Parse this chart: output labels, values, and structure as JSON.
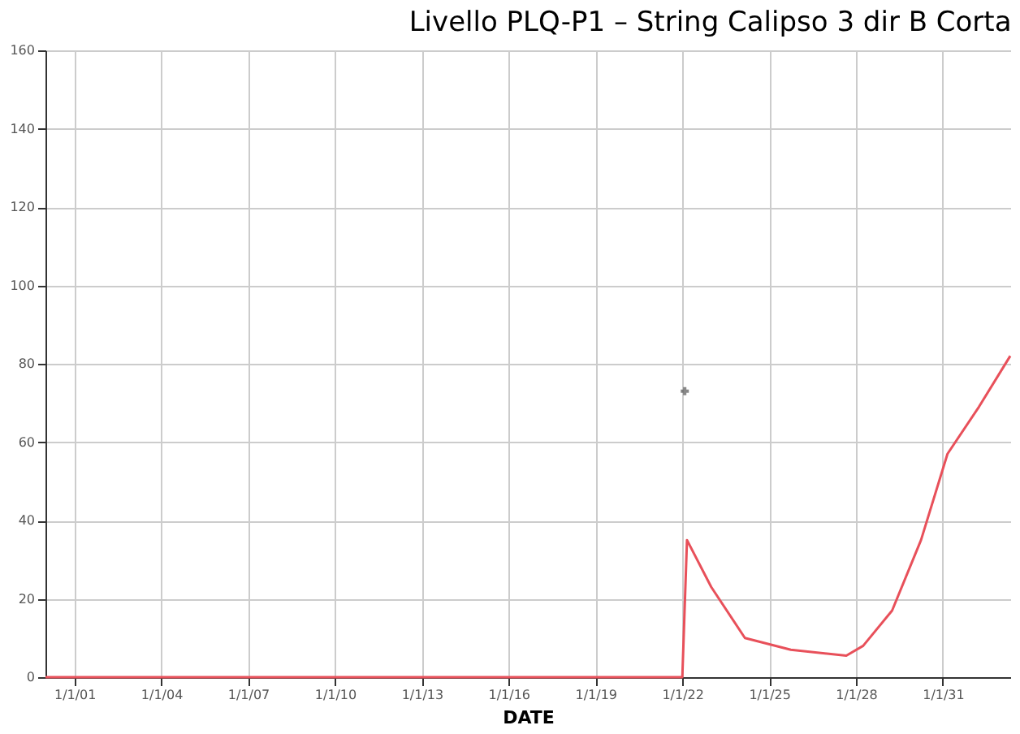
{
  "chart_data": {
    "type": "line",
    "title": "Livello PLQ-P1 – String Calipso 3 dir B Corta",
    "xlabel": "DATE",
    "series": [
      {
        "color": "#e8505a",
        "x": [
          "2000-01",
          "2021-12",
          "2022-01",
          "2022-03",
          "2023-01",
          "2024-03",
          "2025-10",
          "2027-09",
          "2028-04",
          "2029-04",
          "2030-04",
          "2031-03",
          "2032-04",
          "2033-05"
        ],
        "values": [
          0,
          0,
          0,
          35,
          23,
          10,
          7,
          5.5,
          8,
          17,
          35,
          57,
          69,
          82
        ]
      },
      {
        "type": "scatter",
        "color": "#555555",
        "marker": "cross",
        "x": [
          "2022-02"
        ],
        "values": [
          73
        ]
      }
    ],
    "xlim": [
      "2000-01",
      "2033-05"
    ],
    "ylim": [
      0,
      160
    ],
    "xticks": [
      {
        "value": "2001-01-01",
        "label": "1/1/01"
      },
      {
        "value": "2004-01-01",
        "label": "1/1/04"
      },
      {
        "value": "2007-01-01",
        "label": "1/1/07"
      },
      {
        "value": "2010-01-01",
        "label": "1/1/10"
      },
      {
        "value": "2013-01-01",
        "label": "1/1/13"
      },
      {
        "value": "2016-01-01",
        "label": "1/1/16"
      },
      {
        "value": "2019-01-01",
        "label": "1/1/19"
      },
      {
        "value": "2022-01-01",
        "label": "1/1/22"
      },
      {
        "value": "2025-01-01",
        "label": "1/1/25"
      },
      {
        "value": "2028-01-01",
        "label": "1/1/28"
      },
      {
        "value": "2031-01-01",
        "label": "1/1/31"
      }
    ],
    "yticks": [
      0,
      20,
      40,
      60,
      80,
      100,
      120,
      140,
      160
    ],
    "grid": true,
    "line_style": "solid"
  }
}
